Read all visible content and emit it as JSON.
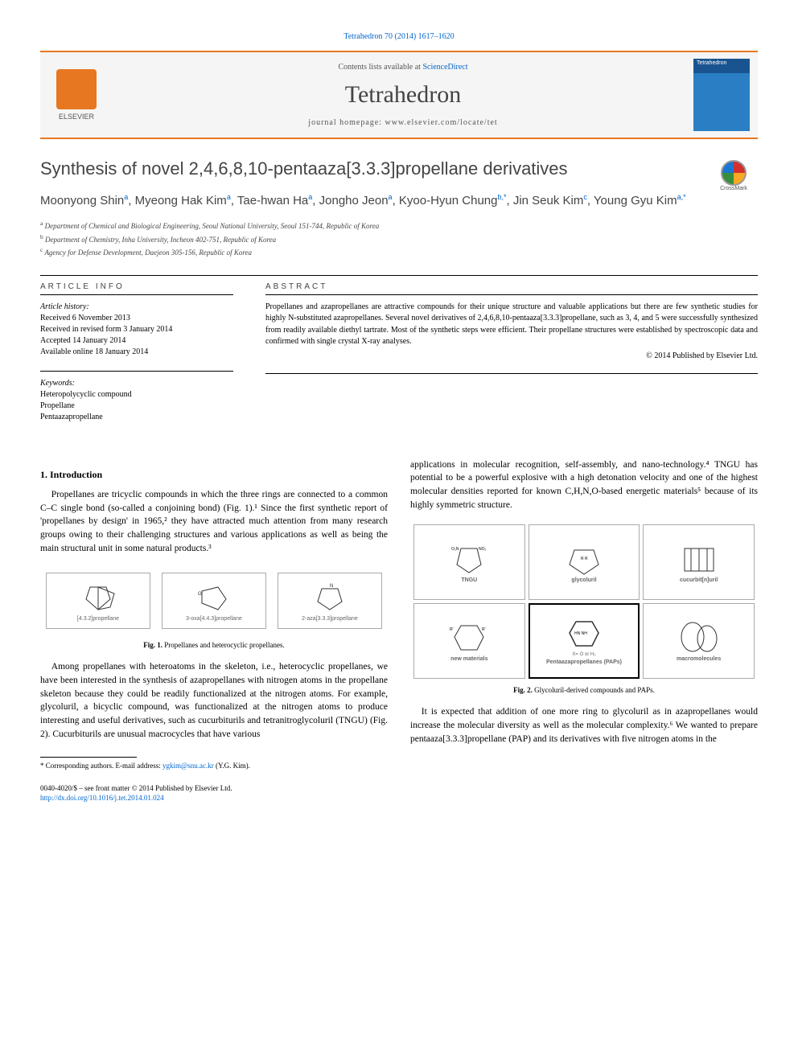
{
  "citation": "Tetrahedron 70 (2014) 1617–1620",
  "contents_prefix": "Contents lists available at ",
  "contents_link": "ScienceDirect",
  "journal_name": "Tetrahedron",
  "homepage_prefix": "journal homepage: ",
  "homepage_url": "www.elsevier.com/locate/tet",
  "elsevier_label": "ELSEVIER",
  "journal_cover_title": "Tetrahedron",
  "crossmark_label": "CrossMark",
  "title": "Synthesis of novel 2,4,6,8,10-pentaaza[3.3.3]propellane derivatives",
  "authors_html": "Moonyong Shin<sup>a</sup>, Myeong Hak Kim<sup>a</sup>, Tae-hwan Ha<sup>a</sup>, Jongho Jeon<sup>a</sup>, Kyoo-Hyun Chung<sup>b,*</sup>, Jin Seuk Kim<sup>c</sup>, Young Gyu Kim<sup>a,*</sup>",
  "affiliations": {
    "a": "Department of Chemical and Biological Engineering, Seoul National University, Seoul 151-744, Republic of Korea",
    "b": "Department of Chemistry, Inha University, Incheon 402-751, Republic of Korea",
    "c": "Agency for Defense Development, Daejeon 305-156, Republic of Korea"
  },
  "article_info_heading": "ARTICLE INFO",
  "history_label": "Article history:",
  "history": {
    "received": "Received 6 November 2013",
    "revised": "Received in revised form 3 January 2014",
    "accepted": "Accepted 14 January 2014",
    "online": "Available online 18 January 2014"
  },
  "keywords_label": "Keywords:",
  "keywords": [
    "Heteropolycyclic compound",
    "Propellane",
    "Pentaazapropellane"
  ],
  "abstract_heading": "ABSTRACT",
  "abstract_text": "Propellanes and azapropellanes are attractive compounds for their unique structure and valuable applications but there are few synthetic studies for highly N-substituted azapropellanes. Several novel derivatives of 2,4,6,8,10-pentaaza[3.3.3]propellane, such as 3, 4, and 5 were successfully synthesized from readily available diethyl tartrate. Most of the synthetic steps were efficient. Their propellane structures were established by spectroscopic data and confirmed with single crystal X-ray analyses.",
  "copyright": "© 2014 Published by Elsevier Ltd.",
  "section1_heading": "1. Introduction",
  "para1": "Propellanes are tricyclic compounds in which the three rings are connected to a common C–C single bond (so-called a conjoining bond) (Fig. 1).¹ Since the first synthetic report of 'propellanes by design' in 1965,² they have attracted much attention from many research groups owing to their challenging structures and various applications as well as being the main structural unit in some natural products.³",
  "fig1_labels": [
    "[4.3.2]propellane",
    "3-oxa[4.4.3]propellane",
    "2-aza[3.3.3]propellane"
  ],
  "fig1_caption": "Fig. 1. Propellanes and heterocyclic propellanes.",
  "para2": "Among propellanes with heteroatoms in the skeleton, i.e., heterocyclic propellanes, we have been interested in the synthesis of azapropellanes with nitrogen atoms in the propellane skeleton because they could be readily functionalized at the nitrogen atoms. For example, glycoluril, a bicyclic compound, was functionalized at the nitrogen atoms to produce interesting and useful derivatives, such as cucurbiturils and tetranitroglycoluril (TNGU) (Fig. 2). Cucurbiturils are unusual macrocycles that have various",
  "para3": "applications in molecular recognition, self-assembly, and nano-technology.⁴ TNGU has potential to be a powerful explosive with a high detonation velocity and one of the highest molecular densities reported for known C,H,N,O-based energetic materials⁵ because of its highly symmetric structure.",
  "fig2_labels": [
    "TNGU",
    "glycoluril",
    "cucurbit[n]uril",
    "new materials",
    "Pentaazapropellanes (PAPs)",
    "macromolecules"
  ],
  "fig2_sublabel": "X= O or H₂",
  "fig2_caption": "Fig. 2. Glycoluril-derived compounds and PAPs.",
  "para4": "It is expected that addition of one more ring to glycoluril as in azapropellanes would increase the molecular diversity as well as the molecular complexity.⁶ We wanted to prepare pentaaza[3.3.3]propellane (PAP) and its derivatives with five nitrogen atoms in the",
  "corresponding_note": "* Corresponding authors. E-mail address: ",
  "corresponding_email": "ygkim@snu.ac.kr",
  "corresponding_suffix": " (Y.G. Kim).",
  "footer_issn": "0040-4020/$ – see front matter © 2014 Published by Elsevier Ltd.",
  "doi_url": "http://dx.doi.org/10.1016/j.tet.2014.01.024",
  "colors": {
    "link": "#0066cc",
    "accent": "#e87722",
    "text": "#000000",
    "heading": "#444444",
    "cover_top": "#1a5490",
    "cover_body": "#2a7fc4"
  }
}
